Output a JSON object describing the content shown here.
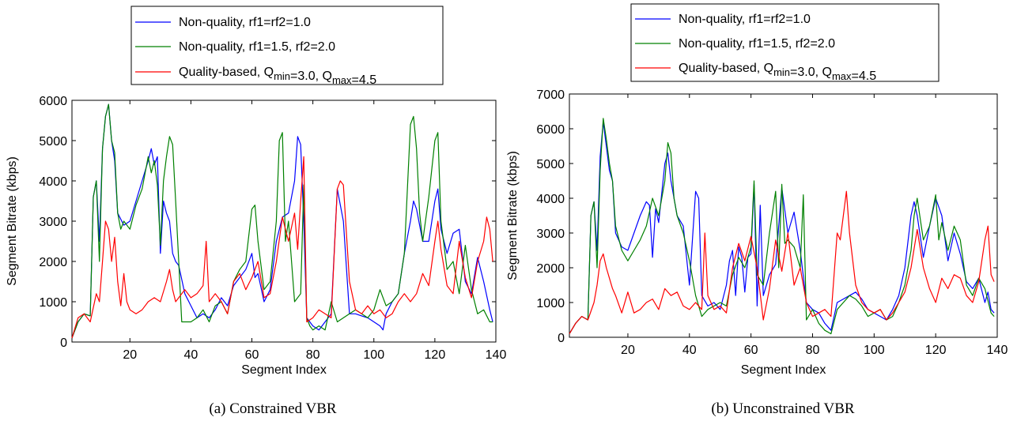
{
  "chart_data": [
    {
      "type": "line",
      "caption": "(a)  Constrained VBR",
      "xlabel": "Segment Index",
      "ylabel": "Segment Bitrate (kbps)",
      "xlim": [
        1,
        140
      ],
      "ylim": [
        0,
        6000
      ],
      "xticks": [
        "20",
        "40",
        "60",
        "80",
        "100",
        "120",
        "140"
      ],
      "yticks": [
        "0",
        "1000",
        "2000",
        "3000",
        "4000",
        "5000",
        "6000"
      ],
      "legend_position": "above",
      "series": [
        {
          "name": "Non-quality, rf1=rf2=1.0",
          "color": "#0000ff",
          "x": [
            1,
            3,
            5,
            7,
            8,
            9,
            10,
            11,
            12,
            13,
            14,
            15,
            16,
            18,
            20,
            22,
            24,
            26,
            27,
            28,
            29,
            30,
            31,
            32,
            33,
            34,
            35,
            36,
            38,
            40,
            42,
            44,
            46,
            48,
            50,
            52,
            54,
            56,
            58,
            60,
            61,
            62,
            64,
            66,
            68,
            70,
            72,
            74,
            75,
            76,
            77,
            78,
            80,
            82,
            84,
            86,
            88,
            90,
            92,
            94,
            96,
            98,
            100,
            102,
            103,
            104,
            106,
            108,
            110,
            112,
            113,
            114,
            116,
            118,
            120,
            121,
            122,
            124,
            126,
            128,
            130,
            132,
            134,
            136,
            138,
            139
          ],
          "y": [
            100,
            500,
            700,
            650,
            3600,
            4000,
            2500,
            4800,
            5600,
            5900,
            5000,
            4500,
            3200,
            2900,
            3000,
            3500,
            4000,
            4500,
            4800,
            4400,
            4600,
            2200,
            3500,
            3200,
            3000,
            2200,
            2000,
            1900,
            1200,
            900,
            600,
            700,
            600,
            800,
            1100,
            900,
            1400,
            1600,
            1800,
            2200,
            1600,
            1700,
            1000,
            1300,
            2500,
            3100,
            3200,
            4000,
            5100,
            4900,
            3000,
            600,
            400,
            300,
            500,
            700,
            3800,
            3000,
            700,
            700,
            650,
            600,
            500,
            400,
            300,
            700,
            1000,
            1200,
            2200,
            3000,
            3500,
            3300,
            2500,
            2500,
            3500,
            3800,
            2800,
            2200,
            2700,
            2800,
            1500,
            1200,
            2100,
            1500,
            800,
            500
          ]
        },
        {
          "name": "Non-quality, rf1=1.5, rf2=2.0",
          "color": "#008000",
          "x": [
            1,
            3,
            5,
            7,
            8,
            9,
            10,
            11,
            12,
            13,
            14,
            15,
            16,
            17,
            18,
            20,
            22,
            24,
            26,
            27,
            28,
            29,
            30,
            31,
            32,
            33,
            34,
            35,
            36,
            37,
            38,
            40,
            42,
            44,
            46,
            48,
            50,
            52,
            54,
            56,
            58,
            60,
            61,
            62,
            64,
            66,
            68,
            69,
            70,
            71,
            72,
            74,
            76,
            77,
            78,
            79,
            80,
            82,
            84,
            86,
            88,
            90,
            92,
            94,
            96,
            98,
            100,
            102,
            104,
            106,
            108,
            110,
            112,
            113,
            114,
            115,
            116,
            118,
            120,
            121,
            122,
            124,
            126,
            128,
            130,
            132,
            134,
            136,
            138,
            139
          ],
          "y": [
            100,
            500,
            700,
            650,
            3600,
            4000,
            2000,
            4800,
            5600,
            5900,
            5000,
            4700,
            3200,
            2800,
            3000,
            2800,
            3400,
            3800,
            4600,
            4200,
            4500,
            3900,
            2400,
            4000,
            4600,
            5100,
            4900,
            3500,
            2000,
            500,
            500,
            500,
            600,
            800,
            500,
            900,
            1000,
            700,
            1500,
            1800,
            2000,
            3300,
            3400,
            2500,
            1300,
            1500,
            3000,
            5000,
            5200,
            2500,
            3000,
            1000,
            1200,
            3900,
            600,
            400,
            300,
            400,
            300,
            1000,
            500,
            600,
            700,
            800,
            700,
            600,
            800,
            1300,
            900,
            1000,
            1200,
            2200,
            5400,
            5600,
            4800,
            3200,
            2500,
            3600,
            5000,
            5200,
            3000,
            1800,
            2000,
            1200,
            2400,
            1300,
            700,
            800,
            500,
            500
          ]
        },
        {
          "name": "Quality-based, Q_min=3.0, Q_max=4.5",
          "color": "#ff0000",
          "x": [
            1,
            3,
            5,
            7,
            9,
            10,
            11,
            12,
            13,
            14,
            15,
            16,
            17,
            18,
            19,
            20,
            22,
            24,
            26,
            28,
            30,
            32,
            33,
            34,
            35,
            36,
            38,
            40,
            42,
            44,
            45,
            46,
            48,
            50,
            52,
            54,
            56,
            58,
            60,
            62,
            64,
            66,
            68,
            70,
            72,
            74,
            75,
            76,
            77,
            78,
            80,
            82,
            84,
            86,
            88,
            89,
            90,
            92,
            94,
            96,
            98,
            100,
            102,
            104,
            106,
            108,
            110,
            112,
            114,
            116,
            118,
            120,
            121,
            122,
            124,
            126,
            128,
            130,
            132,
            134,
            136,
            137,
            138,
            139
          ],
          "y": [
            100,
            600,
            700,
            500,
            1200,
            1000,
            2000,
            3000,
            2800,
            2000,
            2600,
            1500,
            900,
            1700,
            1000,
            800,
            700,
            800,
            1000,
            1100,
            1000,
            1500,
            1800,
            1300,
            1000,
            1100,
            1300,
            1100,
            1200,
            1400,
            2500,
            1000,
            1200,
            1000,
            700,
            1500,
            1700,
            1300,
            1600,
            2000,
            1100,
            1200,
            2000,
            3100,
            2500,
            3200,
            2300,
            3500,
            4600,
            500,
            600,
            800,
            700,
            600,
            3800,
            4000,
            3900,
            1500,
            800,
            700,
            900,
            700,
            800,
            600,
            700,
            1000,
            1200,
            1000,
            1200,
            1700,
            1400,
            2500,
            3000,
            2300,
            1400,
            1200,
            2500,
            1600,
            1100,
            2000,
            2500,
            3100,
            2800,
            2000
          ]
        }
      ]
    },
    {
      "type": "line",
      "caption": "(b) Unconstrained VBR",
      "xlabel": "Segment Index",
      "ylabel": "Segment Bitrate (kbps)",
      "xlim": [
        1,
        140
      ],
      "ylim": [
        0,
        7000
      ],
      "xticks": [
        "20",
        "40",
        "60",
        "80",
        "100",
        "120",
        "140"
      ],
      "yticks": [
        "0",
        "1000",
        "2000",
        "3000",
        "4000",
        "5000",
        "6000",
        "7000"
      ],
      "legend_position": "above",
      "series": [
        {
          "name": "Non-quality, rf1=rf2=1.0",
          "color": "#0000ff",
          "x": [
            1,
            3,
            5,
            7,
            8,
            9,
            10,
            11,
            12,
            13,
            14,
            15,
            16,
            18,
            20,
            22,
            24,
            26,
            27,
            28,
            29,
            30,
            32,
            33,
            34,
            35,
            36,
            38,
            40,
            42,
            43,
            44,
            46,
            48,
            50,
            52,
            53,
            54,
            55,
            56,
            57,
            58,
            59,
            60,
            61,
            62,
            63,
            64,
            66,
            68,
            70,
            72,
            74,
            76,
            78,
            80,
            82,
            84,
            86,
            88,
            90,
            92,
            94,
            96,
            98,
            100,
            102,
            104,
            106,
            108,
            110,
            112,
            113,
            114,
            116,
            118,
            120,
            122,
            124,
            126,
            128,
            130,
            132,
            134,
            136,
            137,
            138,
            139
          ],
          "y": [
            100,
            400,
            600,
            500,
            3500,
            3900,
            2500,
            5200,
            6200,
            5500,
            4800,
            4500,
            3000,
            2600,
            2500,
            3000,
            3500,
            3900,
            3800,
            2300,
            3700,
            3300,
            5000,
            5300,
            4500,
            4000,
            3500,
            3200,
            1500,
            4200,
            4000,
            1200,
            900,
            1000,
            800,
            1500,
            2200,
            2500,
            1200,
            2600,
            2300,
            1300,
            2300,
            2400,
            4400,
            900,
            3800,
            1200,
            1800,
            2100,
            4300,
            3000,
            3600,
            2500,
            1000,
            800,
            700,
            400,
            200,
            1000,
            1100,
            1200,
            1300,
            1100,
            800,
            700,
            600,
            500,
            800,
            1200,
            2000,
            3500,
            3900,
            3500,
            2300,
            3200,
            4000,
            3500,
            2200,
            3000,
            2400,
            1600,
            1400,
            1700,
            1000,
            1300,
            800,
            700
          ]
        },
        {
          "name": "Non-quality, rf1=1.5, rf2=2.0",
          "color": "#008000",
          "x": [
            1,
            3,
            5,
            7,
            8,
            9,
            10,
            11,
            12,
            13,
            14,
            15,
            16,
            18,
            20,
            22,
            24,
            26,
            28,
            30,
            32,
            33,
            34,
            35,
            36,
            38,
            40,
            42,
            44,
            46,
            48,
            50,
            52,
            54,
            56,
            58,
            60,
            61,
            62,
            64,
            66,
            68,
            69,
            70,
            71,
            72,
            74,
            76,
            77,
            78,
            80,
            82,
            84,
            86,
            88,
            90,
            92,
            94,
            96,
            98,
            100,
            102,
            104,
            106,
            108,
            110,
            112,
            113,
            114,
            116,
            118,
            120,
            121,
            122,
            124,
            126,
            128,
            130,
            132,
            134,
            136,
            138,
            139
          ],
          "y": [
            100,
            400,
            600,
            500,
            3500,
            3900,
            2000,
            4800,
            6300,
            5700,
            5000,
            4500,
            3200,
            2500,
            2200,
            2500,
            2800,
            3200,
            4000,
            3500,
            4500,
            5600,
            5300,
            4000,
            3500,
            3000,
            2200,
            1200,
            600,
            800,
            900,
            1000,
            900,
            1800,
            2300,
            2000,
            2600,
            4500,
            1800,
            1500,
            3000,
            4200,
            2000,
            4400,
            2700,
            2800,
            2600,
            2000,
            4100,
            500,
            800,
            400,
            200,
            100,
            800,
            1000,
            1200,
            1100,
            900,
            600,
            700,
            800,
            500,
            600,
            1000,
            1500,
            2500,
            3500,
            4000,
            2800,
            3200,
            4100,
            2800,
            3300,
            2500,
            3200,
            2800,
            1500,
            1200,
            1700,
            1400,
            700,
            600
          ]
        },
        {
          "name": "Quality-based, Q_min=3.0, Q_max=4.5",
          "color": "#ff0000",
          "x": [
            1,
            3,
            5,
            7,
            9,
            10,
            11,
            12,
            13,
            14,
            15,
            16,
            18,
            20,
            22,
            24,
            26,
            28,
            30,
            32,
            34,
            36,
            38,
            40,
            42,
            44,
            45,
            46,
            48,
            50,
            52,
            54,
            56,
            58,
            60,
            62,
            64,
            66,
            68,
            70,
            72,
            74,
            76,
            78,
            80,
            82,
            84,
            86,
            88,
            89,
            90,
            91,
            92,
            94,
            96,
            98,
            100,
            102,
            104,
            106,
            108,
            110,
            112,
            114,
            116,
            118,
            120,
            122,
            124,
            126,
            128,
            130,
            132,
            134,
            136,
            137,
            138,
            139
          ],
          "y": [
            100,
            400,
            600,
            500,
            1000,
            1500,
            2200,
            2400,
            2000,
            1700,
            1400,
            1200,
            700,
            1300,
            700,
            800,
            1000,
            1100,
            800,
            1400,
            1200,
            1300,
            900,
            800,
            1000,
            800,
            3000,
            1200,
            800,
            900,
            700,
            2000,
            2700,
            2200,
            2900,
            2000,
            500,
            1400,
            2800,
            1900,
            3000,
            1500,
            2000,
            1000,
            600,
            700,
            800,
            600,
            3000,
            2800,
            3500,
            4200,
            3000,
            1500,
            1000,
            800,
            700,
            800,
            500,
            700,
            1000,
            1300,
            2000,
            3100,
            2000,
            1400,
            1000,
            1700,
            1400,
            1800,
            1700,
            1200,
            1000,
            1600,
            2800,
            3200,
            1800,
            1600
          ]
        }
      ]
    }
  ]
}
